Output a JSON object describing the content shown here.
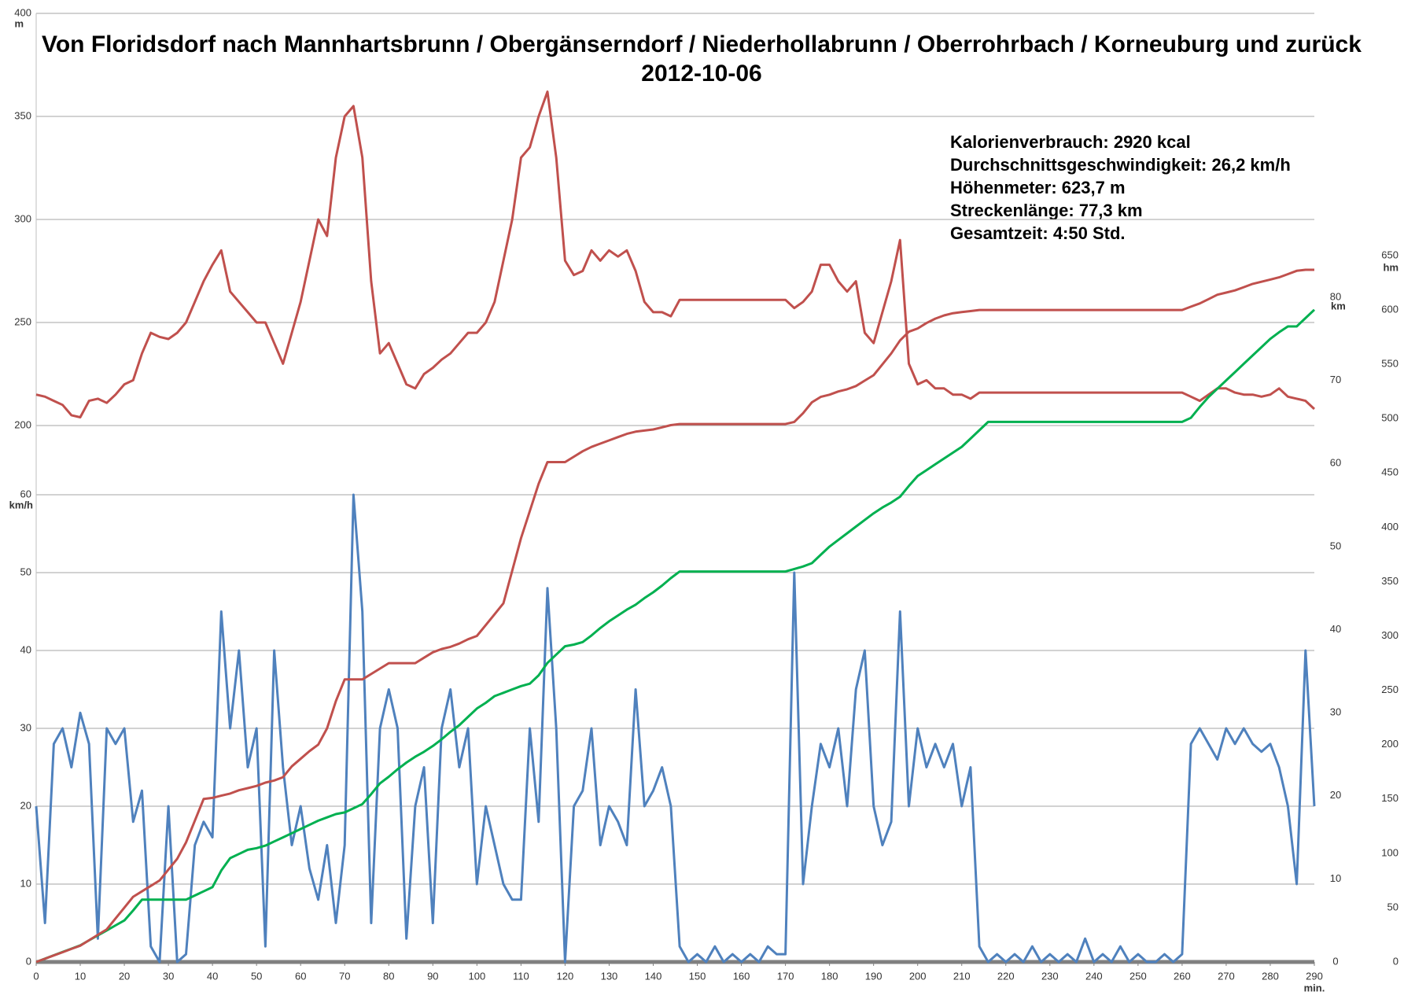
{
  "chart_data": {
    "type": "line",
    "title": "Von Floridsdorf nach Mannhartsbrunn / Obergänserndorf / Niederhollabrunn / Oberrohrbach / Korneuburg und zurück",
    "subtitle": "2012-10-06",
    "annotations": [
      "Kalorienverbrauch: 2920 kcal",
      "Durchschnittsgeschwindigkeit: 26,2 km/h",
      "Höhenmeter: 623,7 m",
      "Streckenlänge: 77,3 km",
      "Gesamtzeit: 4:50 Std."
    ],
    "xlabel": "min.",
    "xlim": [
      0,
      290
    ],
    "xticks": [
      0,
      10,
      20,
      30,
      40,
      50,
      60,
      70,
      80,
      90,
      100,
      110,
      120,
      130,
      140,
      150,
      160,
      170,
      180,
      190,
      200,
      210,
      220,
      230,
      240,
      250,
      260,
      270,
      280,
      290
    ],
    "grid": true,
    "axes": [
      {
        "label": "m",
        "color": "#c0504d",
        "lim": [
          200,
          400
        ],
        "ticks": [
          200,
          250,
          300,
          350,
          400
        ]
      },
      {
        "label": "km/h",
        "color": "#4f81bd",
        "lim": [
          0,
          60
        ],
        "ticks": [
          0,
          10,
          20,
          30,
          40,
          50,
          60
        ]
      },
      {
        "label": "km",
        "color": "#00b050",
        "lim": [
          0,
          80
        ],
        "ticks": [
          0,
          10,
          20,
          30,
          40,
          50,
          60,
          70,
          80
        ]
      },
      {
        "label": "hm",
        "color": "#c0504d",
        "lim": [
          0,
          650
        ],
        "ticks": [
          0,
          50,
          100,
          150,
          200,
          250,
          300,
          350,
          400,
          450,
          500,
          550,
          600,
          650
        ]
      }
    ],
    "x": [
      0,
      2,
      4,
      6,
      8,
      10,
      12,
      14,
      16,
      18,
      20,
      22,
      24,
      26,
      28,
      30,
      32,
      34,
      36,
      38,
      40,
      42,
      44,
      46,
      48,
      50,
      52,
      54,
      56,
      58,
      60,
      62,
      64,
      66,
      68,
      70,
      72,
      74,
      76,
      78,
      80,
      82,
      84,
      86,
      88,
      90,
      92,
      94,
      96,
      98,
      100,
      102,
      104,
      106,
      108,
      110,
      112,
      114,
      116,
      118,
      120,
      122,
      124,
      126,
      128,
      130,
      132,
      134,
      136,
      138,
      140,
      142,
      144,
      146,
      148,
      150,
      152,
      154,
      156,
      158,
      160,
      162,
      164,
      166,
      168,
      170,
      172,
      174,
      176,
      178,
      180,
      182,
      184,
      186,
      188,
      190,
      192,
      194,
      196,
      198,
      200,
      202,
      204,
      206,
      208,
      210,
      212,
      214,
      216,
      218,
      220,
      222,
      224,
      226,
      228,
      230,
      232,
      234,
      236,
      238,
      240,
      242,
      244,
      246,
      248,
      250,
      252,
      254,
      256,
      258,
      260,
      262,
      264,
      266,
      268,
      270,
      272,
      274,
      276,
      278,
      280,
      282,
      284,
      286,
      288,
      290
    ],
    "series": [
      {
        "color": "#4f81bd",
        "axis": 1,
        "values": [
          20,
          5,
          28,
          30,
          25,
          32,
          28,
          3,
          30,
          28,
          30,
          18,
          22,
          2,
          0,
          20,
          0,
          1,
          15,
          18,
          16,
          45,
          30,
          40,
          25,
          30,
          2,
          40,
          25,
          15,
          20,
          12,
          8,
          15,
          5,
          15,
          60,
          45,
          5,
          30,
          35,
          30,
          3,
          20,
          25,
          5,
          30,
          35,
          25,
          30,
          10,
          20,
          15,
          10,
          8,
          8,
          30,
          18,
          48,
          30,
          0,
          20,
          22,
          30,
          15,
          20,
          18,
          15,
          35,
          20,
          22,
          25,
          20,
          2,
          0,
          1,
          0,
          2,
          0,
          1,
          0,
          1,
          0,
          2,
          1,
          1,
          50,
          10,
          20,
          28,
          25,
          30,
          20,
          35,
          40,
          20,
          15,
          18,
          45,
          20,
          30,
          25,
          28,
          25,
          28,
          20,
          25,
          2,
          0,
          1,
          0,
          1,
          0,
          2,
          0,
          1,
          0,
          1,
          0,
          3,
          0,
          1,
          0,
          2,
          0,
          1,
          0,
          0,
          1,
          0,
          1,
          28,
          30,
          28,
          26,
          30,
          28,
          30,
          28,
          27,
          28,
          25,
          20,
          10,
          40,
          20
        ]
      },
      {
        "color": "#c0504d",
        "axis": 0,
        "values": [
          215,
          214,
          212,
          210,
          205,
          204,
          212,
          213,
          211,
          215,
          220,
          222,
          235,
          245,
          243,
          242,
          245,
          250,
          260,
          270,
          278,
          285,
          265,
          260,
          255,
          250,
          250,
          240,
          230,
          245,
          260,
          280,
          300,
          292,
          330,
          350,
          355,
          330,
          270,
          235,
          240,
          230,
          220,
          218,
          225,
          228,
          232,
          235,
          240,
          245,
          245,
          250,
          260,
          280,
          300,
          330,
          335,
          350,
          362,
          330,
          280,
          273,
          275,
          285,
          280,
          285,
          282,
          285,
          275,
          260,
          255,
          255,
          253,
          261,
          261,
          261,
          261,
          261,
          261,
          261,
          261,
          261,
          261,
          261,
          261,
          261,
          257,
          260,
          265,
          278,
          278,
          270,
          265,
          270,
          245,
          240,
          255,
          270,
          290,
          230,
          220,
          222,
          218,
          218,
          215,
          215,
          213,
          216,
          216,
          216,
          216,
          216,
          216,
          216,
          216,
          216,
          216,
          216,
          216,
          216,
          216,
          216,
          216,
          216,
          216,
          216,
          216,
          216,
          216,
          216,
          216,
          214,
          212,
          215,
          218,
          218,
          216,
          215,
          215,
          214,
          215,
          218,
          214,
          213,
          212,
          208
        ]
      },
      {
        "color": "#00b050",
        "axis": 2,
        "values": [
          0,
          0.4,
          0.8,
          1.2,
          1.6,
          2,
          2.6,
          3.2,
          3.8,
          4.4,
          5,
          6.2,
          7.5,
          7.5,
          7.5,
          7.5,
          7.5,
          7.5,
          8,
          8.5,
          9,
          11,
          12.5,
          13,
          13.5,
          13.7,
          14,
          14.5,
          15,
          15.5,
          16,
          16.5,
          17,
          17.4,
          17.8,
          18,
          18.5,
          19,
          20.2,
          21.5,
          22.3,
          23.2,
          24,
          24.7,
          25.3,
          26,
          26.8,
          27.7,
          28.5,
          29.5,
          30.5,
          31.2,
          32,
          32.4,
          32.8,
          33.2,
          33.5,
          34.5,
          36,
          37,
          38,
          38.2,
          38.5,
          39.3,
          40.2,
          41,
          41.7,
          42.4,
          43,
          43.8,
          44.5,
          45.3,
          46.2,
          47,
          47,
          47,
          47,
          47,
          47,
          47,
          47,
          47,
          47,
          47,
          47,
          47,
          47.3,
          47.6,
          48,
          49,
          50,
          50.8,
          51.6,
          52.4,
          53.2,
          54,
          54.7,
          55.3,
          56,
          57.3,
          58.5,
          59.2,
          59.9,
          60.6,
          61.3,
          62,
          63,
          64,
          65,
          65,
          65,
          65,
          65,
          65,
          65,
          65,
          65,
          65,
          65,
          65,
          65,
          65,
          65,
          65,
          65,
          65,
          65,
          65,
          65,
          65,
          65,
          65.5,
          66.8,
          68,
          69,
          70,
          71,
          72,
          73,
          74,
          75,
          75.8,
          76.5,
          76.5,
          77.5,
          78.5
        ]
      },
      {
        "color": "#c0504d",
        "axis": 3,
        "values": [
          0,
          3,
          6,
          9,
          12,
          15,
          20,
          25,
          30,
          40,
          50,
          60,
          65,
          70,
          75,
          85,
          95,
          110,
          130,
          150,
          151,
          153,
          155,
          158,
          160,
          162,
          165,
          167,
          170,
          180,
          187,
          194,
          200,
          215,
          240,
          260,
          260,
          260,
          265,
          270,
          275,
          275,
          275,
          275,
          280,
          285,
          288,
          290,
          293,
          297,
          300,
          310,
          320,
          330,
          360,
          390,
          415,
          440,
          460,
          460,
          460,
          465,
          470,
          474,
          477,
          480,
          483,
          486,
          488,
          489,
          490,
          492,
          494,
          495,
          495,
          495,
          495,
          495,
          495,
          495,
          495,
          495,
          495,
          495,
          495,
          495,
          497,
          505,
          515,
          520,
          522,
          525,
          527,
          530,
          535,
          540,
          550,
          560,
          572,
          580,
          583,
          588,
          592,
          595,
          597,
          598,
          599,
          600,
          600,
          600,
          600,
          600,
          600,
          600,
          600,
          600,
          600,
          600,
          600,
          600,
          600,
          600,
          600,
          600,
          600,
          600,
          600,
          600,
          600,
          600,
          600,
          603,
          606,
          610,
          614,
          616,
          618,
          621,
          624,
          626,
          628,
          630,
          633,
          636,
          637,
          637
        ]
      }
    ]
  }
}
